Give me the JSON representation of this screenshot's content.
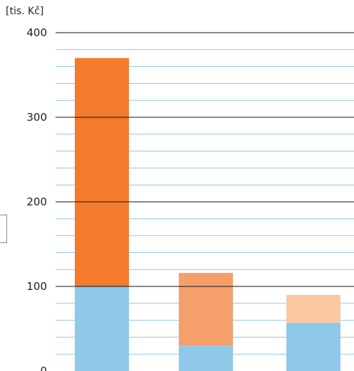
{
  "chart_data": {
    "type": "bar",
    "stacked": true,
    "unit_label": "[tis. Kč]",
    "categories": [
      "",
      "",
      ""
    ],
    "series": [
      {
        "values": [
          100,
          30,
          57
        ],
        "colors": [
          "#90c8ea",
          "#90c8ea",
          "#90c8ea"
        ]
      },
      {
        "values": [
          270,
          86,
          33
        ],
        "colors": [
          "#f47a2e",
          "#f5a06a",
          "#fbc8a2"
        ]
      }
    ],
    "ylim": [
      0,
      400
    ],
    "major_ticks": [
      0,
      100,
      200,
      300,
      400
    ],
    "minor_gridlines": true,
    "grid_color_major": "#111111",
    "grid_color_minor": "#90c8ea"
  }
}
